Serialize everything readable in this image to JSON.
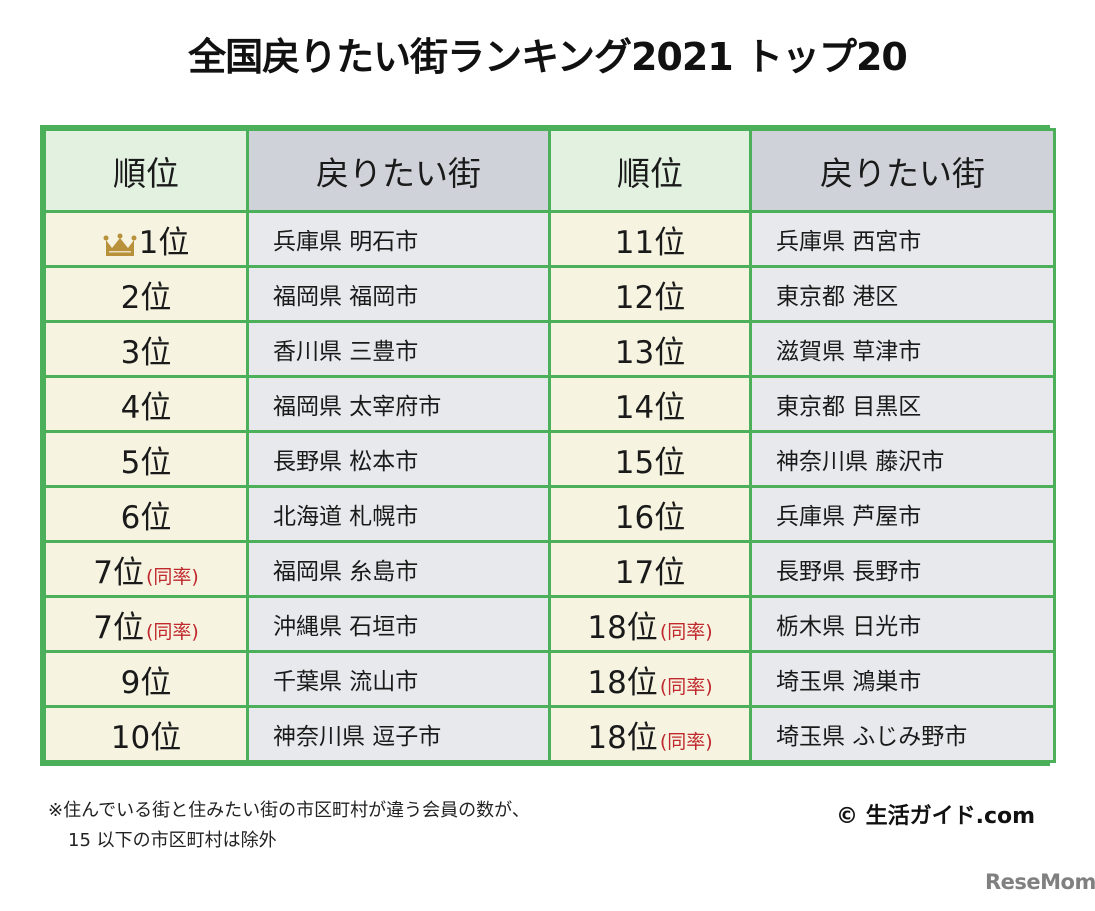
{
  "title": "全国戻りたい街ランキング2021 トップ20",
  "table": {
    "headers": {
      "rank_left": "順位",
      "city_left": "戻りたい街",
      "rank_right": "順位",
      "city_right": "戻りたい街"
    },
    "tie_label": "(同率)",
    "rows": [
      {
        "left_rank": "1位",
        "left_tie": "",
        "left_city": "兵庫県 明石市",
        "right_rank": "11位",
        "right_tie": "",
        "right_city": "兵庫県 西宮市"
      },
      {
        "left_rank": "2位",
        "left_tie": "",
        "left_city": "福岡県 福岡市",
        "right_rank": "12位",
        "right_tie": "",
        "right_city": "東京都 港区"
      },
      {
        "left_rank": "3位",
        "left_tie": "",
        "left_city": "香川県 三豊市",
        "right_rank": "13位",
        "right_tie": "",
        "right_city": "滋賀県 草津市"
      },
      {
        "left_rank": "4位",
        "left_tie": "",
        "left_city": "福岡県 太宰府市",
        "right_rank": "14位",
        "right_tie": "",
        "right_city": "東京都 目黒区"
      },
      {
        "left_rank": "5位",
        "left_tie": "",
        "left_city": "長野県 松本市",
        "right_rank": "15位",
        "right_tie": "",
        "right_city": "神奈川県 藤沢市"
      },
      {
        "left_rank": "6位",
        "left_tie": "",
        "left_city": "北海道 札幌市",
        "right_rank": "16位",
        "right_tie": "",
        "right_city": "兵庫県 芦屋市"
      },
      {
        "left_rank": "7位",
        "left_tie": "(同率)",
        "left_city": "福岡県 糸島市",
        "right_rank": "17位",
        "right_tie": "",
        "right_city": "長野県 長野市"
      },
      {
        "left_rank": "7位",
        "left_tie": "(同率)",
        "left_city": "沖縄県 石垣市",
        "right_rank": "18位",
        "right_tie": "(同率)",
        "right_city": "栃木県 日光市"
      },
      {
        "left_rank": "9位",
        "left_tie": "",
        "left_city": "千葉県 流山市",
        "right_rank": "18位",
        "right_tie": "(同率)",
        "right_city": "埼玉県 鴻巣市"
      },
      {
        "left_rank": "10位",
        "left_tie": "",
        "left_city": "神奈川県 逗子市",
        "right_rank": "18位",
        "right_tie": "(同率)",
        "right_city": "埼玉県 ふじみ野市"
      }
    ],
    "first_place_icon": "crown-icon"
  },
  "footnote": {
    "line1": "※住んでいる街と住みたい街の市区町村が違う会員の数が、",
    "line2": "15 以下の市区町村は除外"
  },
  "credit": "© 生活ガイド.com",
  "watermark": "ReseMom",
  "colors": {
    "border": "#4caf5a",
    "rank_header_bg": "#e2f1e0",
    "city_header_bg": "#cfd3d9",
    "rank_cell_bg": "#f6f4e1",
    "city_cell_bg": "#e8e9ec",
    "tie_text": "#c0282d",
    "crown": "#b8913a"
  }
}
